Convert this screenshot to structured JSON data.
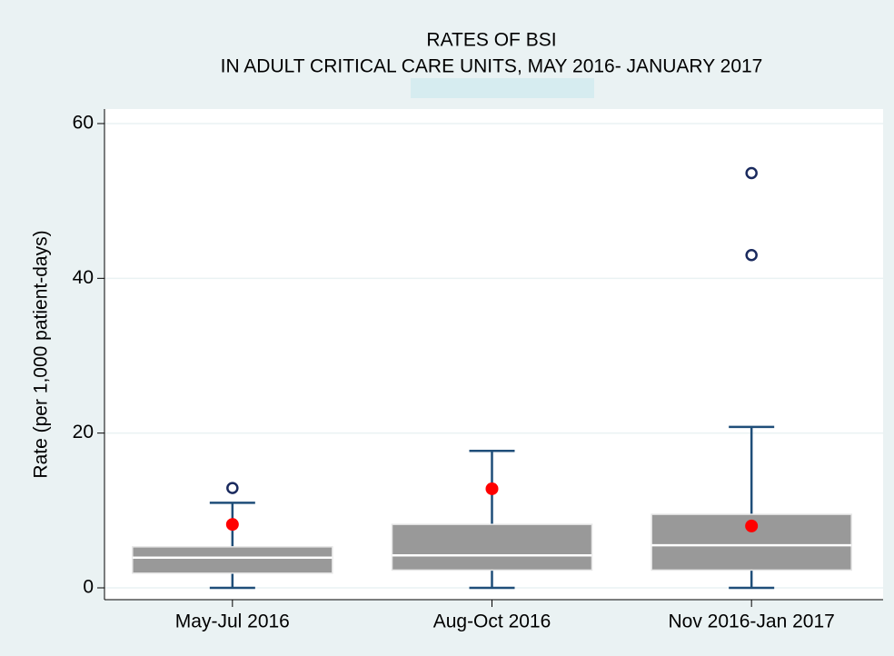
{
  "chart_data": {
    "type": "box",
    "title": [
      "RATES OF BSI",
      "IN ADULT CRITICAL CARE UNITS, MAY 2016- JANUARY 2017"
    ],
    "y_label": "Rate (per 1,000 patient-days)",
    "categories": [
      "May-Jul 2016",
      "Aug-Oct 2016",
      "Nov 2016-Jan 2017"
    ],
    "boxes": [
      {
        "min": 0,
        "q1": 1.9,
        "median": 3.9,
        "q3": 5.3,
        "max": 11.0,
        "mean": 8.2,
        "outliers": [
          12.9
        ]
      },
      {
        "min": 0,
        "q1": 2.3,
        "median": 4.2,
        "q3": 8.2,
        "max": 17.7,
        "mean": 12.8,
        "outliers": []
      },
      {
        "min": 0,
        "q1": 2.3,
        "median": 5.5,
        "q3": 9.5,
        "max": 20.8,
        "mean": 8.0,
        "outliers": [
          43.0,
          53.6
        ]
      }
    ],
    "box_color": "#999999",
    "median_color": "#ffffff",
    "whisker_color": "#1f4e79",
    "mean_color": "#ff0000",
    "outlier_color": "#1a2a5e",
    "ylim": [
      0,
      60
    ],
    "yticks": [
      0,
      20,
      40,
      60
    ],
    "grid": true
  }
}
